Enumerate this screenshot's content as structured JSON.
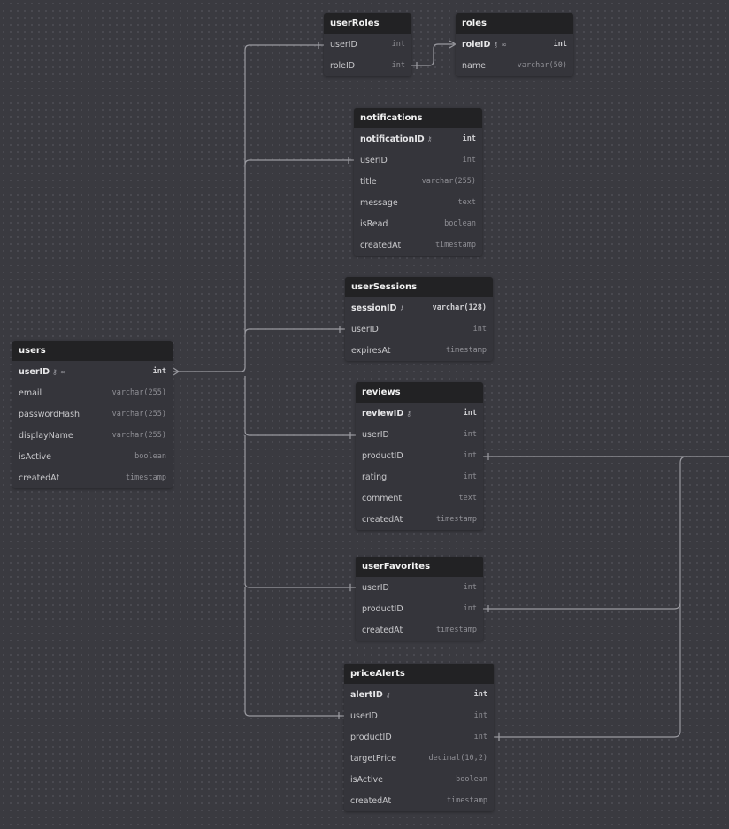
{
  "tables": [
    {
      "id": "userRoles",
      "name": "userRoles",
      "fields": [
        {
          "name": "userID",
          "type": "int"
        },
        {
          "name": "roleID",
          "type": "int"
        }
      ]
    },
    {
      "id": "roles",
      "name": "roles",
      "fields": [
        {
          "name": "roleID",
          "type": "int",
          "pk": true,
          "icons": [
            "key-icon",
            "link-icon"
          ]
        },
        {
          "name": "name",
          "type": "varchar(50)"
        }
      ]
    },
    {
      "id": "notifications",
      "name": "notifications",
      "fields": [
        {
          "name": "notificationID",
          "type": "int",
          "pk": true,
          "icons": [
            "key-icon"
          ]
        },
        {
          "name": "userID",
          "type": "int"
        },
        {
          "name": "title",
          "type": "varchar(255)"
        },
        {
          "name": "message",
          "type": "text"
        },
        {
          "name": "isRead",
          "type": "boolean"
        },
        {
          "name": "createdAt",
          "type": "timestamp"
        }
      ]
    },
    {
      "id": "userSessions",
      "name": "userSessions",
      "fields": [
        {
          "name": "sessionID",
          "type": "varchar(128)",
          "pk": true,
          "icons": [
            "key-icon"
          ]
        },
        {
          "name": "userID",
          "type": "int"
        },
        {
          "name": "expiresAt",
          "type": "timestamp"
        }
      ]
    },
    {
      "id": "users",
      "name": "users",
      "fields": [
        {
          "name": "userID",
          "type": "int",
          "pk": true,
          "icons": [
            "key-icon",
            "link-icon"
          ]
        },
        {
          "name": "email",
          "type": "varchar(255)"
        },
        {
          "name": "passwordHash",
          "type": "varchar(255)"
        },
        {
          "name": "displayName",
          "type": "varchar(255)"
        },
        {
          "name": "isActive",
          "type": "boolean"
        },
        {
          "name": "createdAt",
          "type": "timestamp"
        }
      ]
    },
    {
      "id": "reviews",
      "name": "reviews",
      "fields": [
        {
          "name": "reviewID",
          "type": "int",
          "pk": true,
          "icons": [
            "key-icon"
          ]
        },
        {
          "name": "userID",
          "type": "int"
        },
        {
          "name": "productID",
          "type": "int"
        },
        {
          "name": "rating",
          "type": "int"
        },
        {
          "name": "comment",
          "type": "text"
        },
        {
          "name": "createdAt",
          "type": "timestamp"
        }
      ]
    },
    {
      "id": "userFavorites",
      "name": "userFavorites",
      "fields": [
        {
          "name": "userID",
          "type": "int"
        },
        {
          "name": "productID",
          "type": "int"
        },
        {
          "name": "createdAt",
          "type": "timestamp"
        }
      ]
    },
    {
      "id": "priceAlerts",
      "name": "priceAlerts",
      "fields": [
        {
          "name": "alertID",
          "type": "int",
          "pk": true,
          "icons": [
            "key-icon"
          ]
        },
        {
          "name": "userID",
          "type": "int"
        },
        {
          "name": "productID",
          "type": "int"
        },
        {
          "name": "targetPrice",
          "type": "decimal(10,2)"
        },
        {
          "name": "isActive",
          "type": "boolean"
        },
        {
          "name": "createdAt",
          "type": "timestamp"
        }
      ]
    }
  ]
}
